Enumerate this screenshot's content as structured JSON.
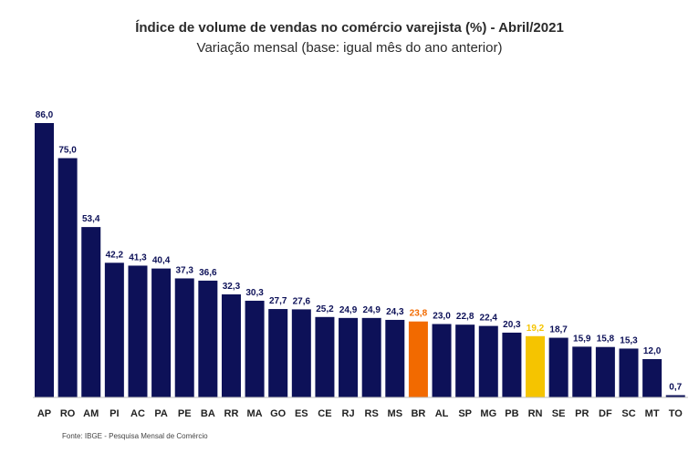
{
  "chart_data": {
    "type": "bar",
    "title": "Índice de volume de vendas no comércio varejista (%) - Abril/2021",
    "subtitle": "Variação mensal (base: igual mês do ano anterior)",
    "categories": [
      "AP",
      "RO",
      "AM",
      "PI",
      "AC",
      "PA",
      "PE",
      "BA",
      "RR",
      "MA",
      "GO",
      "ES",
      "CE",
      "RJ",
      "RS",
      "MS",
      "BR",
      "AL",
      "SP",
      "MG",
      "PB",
      "RN",
      "SE",
      "PR",
      "DF",
      "SC",
      "MT",
      "TO"
    ],
    "values": [
      86.0,
      75.0,
      53.4,
      42.2,
      41.3,
      40.4,
      37.3,
      36.6,
      32.3,
      30.3,
      27.7,
      27.6,
      25.2,
      24.9,
      24.9,
      24.3,
      23.8,
      23.0,
      22.8,
      22.4,
      20.3,
      19.2,
      18.7,
      15.9,
      15.8,
      15.3,
      12.0,
      0.7
    ],
    "value_labels": [
      "86,0",
      "75,0",
      "53,4",
      "42,2",
      "41,3",
      "40,4",
      "37,3",
      "36,6",
      "32,3",
      "30,3",
      "27,7",
      "27,6",
      "25,2",
      "24,9",
      "24,9",
      "24,3",
      "23,8",
      "23,0",
      "22,8",
      "22,4",
      "20,3",
      "19,2",
      "18,7",
      "15,9",
      "15,8",
      "15,3",
      "12,0",
      "0,7"
    ],
    "highlights": {
      "BR": "#f26a00",
      "RN": "#f5c400"
    },
    "default_color": "#0d1158",
    "xlabel": "",
    "ylabel": "",
    "ylim": [
      0,
      86
    ],
    "grid": false,
    "legend": "none"
  },
  "source": "Fonte: IBGE - Pesquisa Mensal de Comércio"
}
